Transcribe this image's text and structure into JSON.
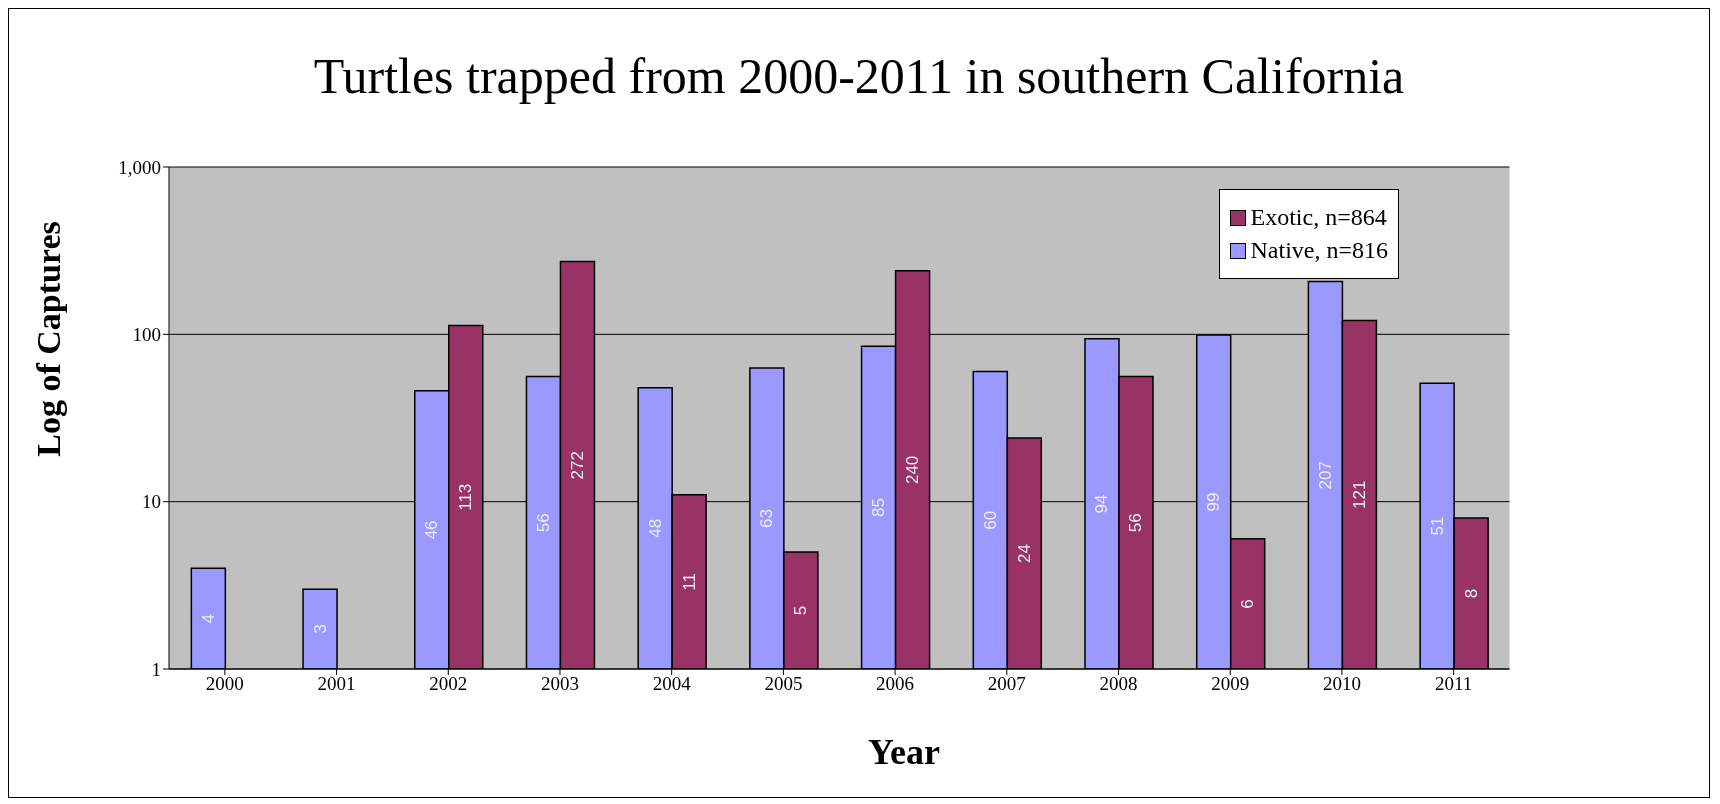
{
  "chart_data": {
    "type": "bar",
    "title": "Turtles trapped from 2000-2011 in southern California",
    "xlabel": "Year",
    "ylabel": "Log of Captures",
    "categories": [
      "2000",
      "2001",
      "2002",
      "2003",
      "2004",
      "2005",
      "2006",
      "2007",
      "2008",
      "2009",
      "2010",
      "2011"
    ],
    "series": [
      {
        "name": "Native, n=816",
        "color": "#9999ff",
        "values": [
          4,
          3,
          46,
          56,
          48,
          63,
          85,
          60,
          94,
          99,
          207,
          51
        ]
      },
      {
        "name": "Exotic, n=864",
        "color": "#993366",
        "values": [
          null,
          null,
          113,
          272,
          11,
          5,
          240,
          24,
          56,
          6,
          121,
          8
        ]
      }
    ],
    "log": "y",
    "ylim": [
      1,
      1000
    ],
    "yticks": [
      1,
      10,
      100,
      {
        "value": 1000,
        "label": "1,000"
      }
    ],
    "grid": "y",
    "legend": "top right",
    "data_labels": true
  }
}
